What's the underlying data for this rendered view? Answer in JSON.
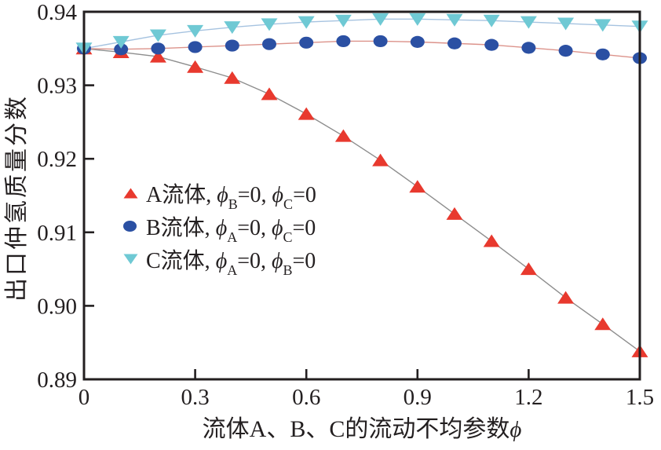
{
  "figure": {
    "background": "#ffffff"
  },
  "chart_data": {
    "type": "line",
    "title": "",
    "xlabel": "流体A、B、C的流动不均参数ϕ",
    "ylabel": "出口仲氢质量分数",
    "xlim": [
      0,
      1.5
    ],
    "ylim": [
      0.89,
      0.94
    ],
    "grid": false,
    "legend_position": "inside-center-left",
    "axis_color": "#231f20",
    "text_color": "#231f20",
    "tick_font_size": 29,
    "xticks": [
      0,
      0.3,
      0.6,
      0.9,
      1.2,
      1.5
    ],
    "xtick_labels": [
      "0",
      "0.3",
      "0.6",
      "0.9",
      "1.2",
      "1.5"
    ],
    "yticks": [
      0.89,
      0.9,
      0.91,
      0.92,
      0.93,
      0.94
    ],
    "ytick_labels": [
      "0.89",
      "0.90",
      "0.91",
      "0.92",
      "0.93",
      "0.94"
    ],
    "x": [
      0,
      0.1,
      0.2,
      0.3,
      0.4,
      0.5,
      0.6,
      0.7,
      0.8,
      0.9,
      1.0,
      1.1,
      1.2,
      1.3,
      1.4,
      1.5
    ],
    "series": [
      {
        "id": "A",
        "label": "A流体, ϕB=0, ϕC=0",
        "marker": "triangle-up",
        "marker_color": "#e8392e",
        "line_color": "#8d8d8d",
        "values": [
          0.935,
          0.9345,
          0.9339,
          0.9325,
          0.931,
          0.9288,
          0.9261,
          0.9231,
          0.9198,
          0.9162,
          0.9125,
          0.9088,
          0.905,
          0.9011,
          0.8975,
          0.8938
        ]
      },
      {
        "id": "B",
        "label": "B流体, ϕA=0, ϕC=0",
        "marker": "circle",
        "marker_color": "#2b50a3",
        "line_color": "#dc938b",
        "values": [
          0.935,
          0.9349,
          0.935,
          0.9352,
          0.9354,
          0.9356,
          0.9358,
          0.936,
          0.936,
          0.9359,
          0.9357,
          0.9355,
          0.9351,
          0.9347,
          0.9342,
          0.9337
        ]
      },
      {
        "id": "C",
        "label": "C流体, ϕA=0, ϕB=0",
        "marker": "triangle-down",
        "marker_color": "#6fc9d4",
        "line_color": "#a6c3e0",
        "values": [
          0.935,
          0.9359,
          0.9368,
          0.9374,
          0.9379,
          0.9383,
          0.9386,
          0.9388,
          0.939,
          0.939,
          0.9389,
          0.9388,
          0.9386,
          0.9384,
          0.9382,
          0.938
        ]
      }
    ]
  },
  "axes": {
    "x": {
      "title_text": "流体A、B、C的流动不均参数",
      "title_phi": "ϕ"
    },
    "y": {
      "title": "出口仲氢质量分数"
    }
  },
  "legend": {
    "items": [
      {
        "name": "A流体, ",
        "phi": "ϕ",
        "sub1": "B",
        "eq1": "=0, ",
        "sub2": "C",
        "eq2": "=0"
      },
      {
        "name": "B流体, ",
        "phi": "ϕ",
        "sub1": "A",
        "eq1": "=0, ",
        "sub2": "C",
        "eq2": "=0"
      },
      {
        "name": "C流体, ",
        "phi": "ϕ",
        "sub1": "A",
        "eq1": "=0, ",
        "sub2": "B",
        "eq2": "=0"
      }
    ]
  }
}
